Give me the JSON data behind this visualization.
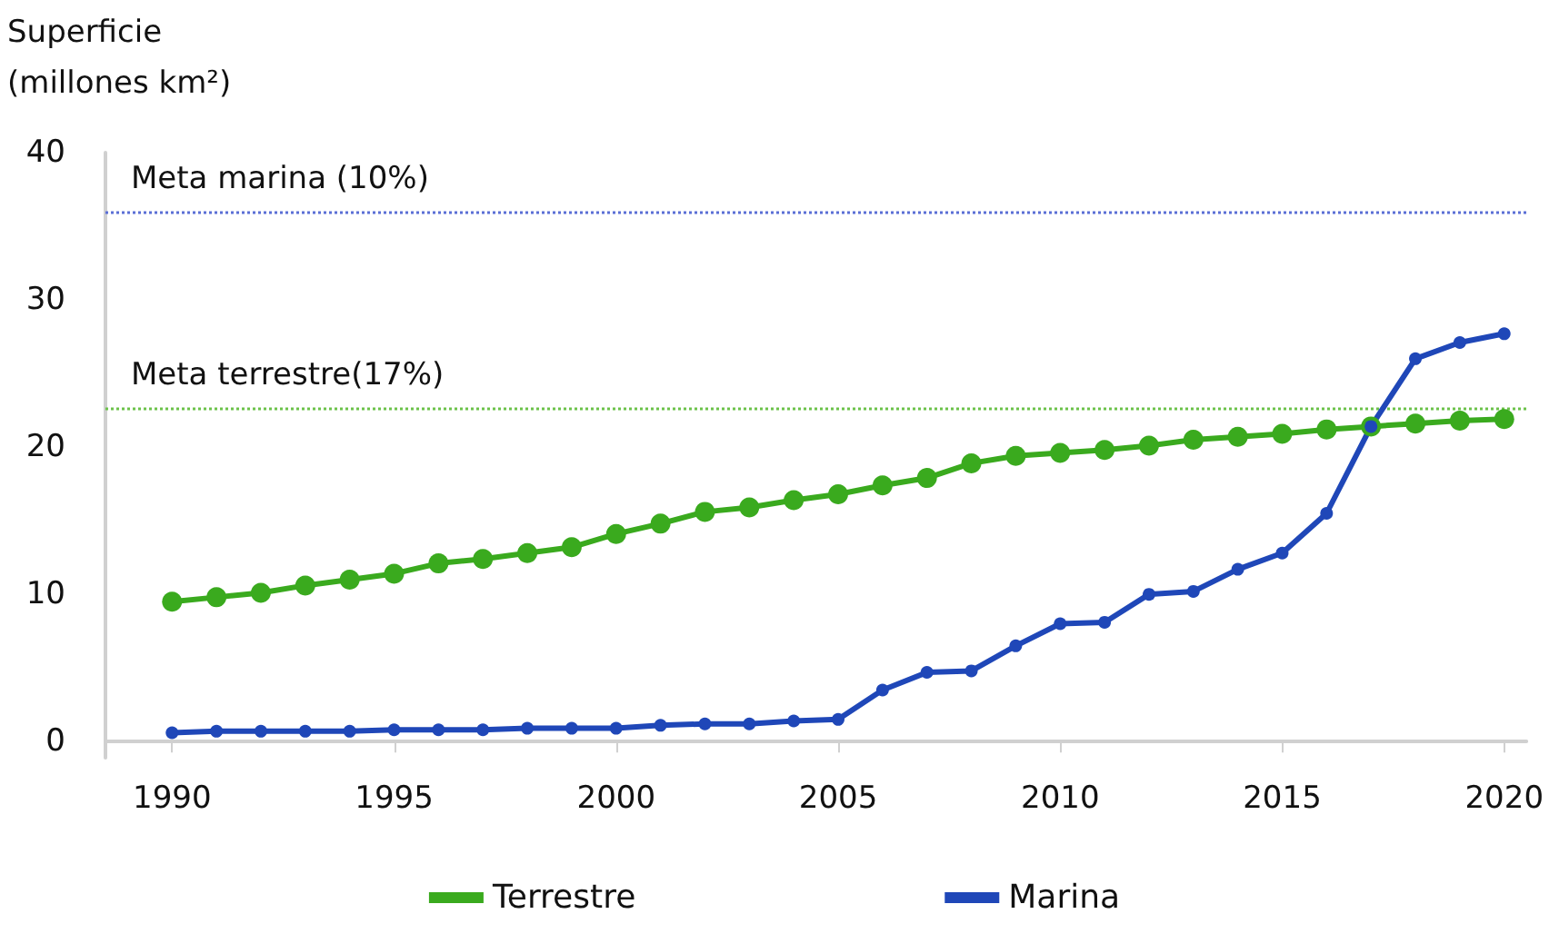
{
  "chart_data": {
    "type": "line",
    "ylabel": "Superficie\n(millones km²)",
    "x": [
      1990,
      1991,
      1992,
      1993,
      1994,
      1995,
      1996,
      1997,
      1998,
      1999,
      2000,
      2001,
      2002,
      2003,
      2004,
      2005,
      2006,
      2007,
      2008,
      2009,
      2010,
      2011,
      2012,
      2013,
      2014,
      2015,
      2016,
      2017,
      2018,
      2019,
      2020
    ],
    "series": [
      {
        "name": "Terrestre",
        "color": "#3aaa1e",
        "values": [
          9.5,
          9.8,
          10.1,
          10.6,
          11.0,
          11.4,
          12.1,
          12.4,
          12.8,
          13.2,
          14.1,
          14.8,
          15.6,
          15.9,
          16.4,
          16.8,
          17.4,
          17.9,
          18.9,
          19.4,
          19.6,
          19.8,
          20.1,
          20.5,
          20.7,
          20.9,
          21.2,
          21.4,
          21.6,
          21.8,
          21.9
        ]
      },
      {
        "name": "Marina",
        "color": "#1f47b8",
        "values": [
          0.6,
          0.7,
          0.7,
          0.7,
          0.7,
          0.8,
          0.8,
          0.8,
          0.9,
          0.9,
          0.9,
          1.1,
          1.2,
          1.2,
          1.4,
          1.5,
          3.5,
          4.7,
          4.8,
          6.5,
          8.0,
          8.1,
          10.0,
          10.2,
          11.7,
          12.8,
          15.5,
          21.4,
          26.0,
          27.1,
          27.7
        ]
      }
    ],
    "xlim": [
      1988.5,
      2020.5
    ],
    "xticks": [
      1990,
      1995,
      2000,
      2005,
      2010,
      2015,
      2020
    ],
    "ylim": [
      -1.1,
      40
    ],
    "yticks": [
      0,
      10,
      20,
      30,
      40
    ],
    "ref_lines": [
      {
        "axis": "y",
        "value": 35.9,
        "label": "Meta marina (10%)",
        "color": "#5b6fd6",
        "line_style": "dotted"
      },
      {
        "axis": "y",
        "value": 22.6,
        "label": "Meta terrestre(17%)",
        "color": "#6cc24a",
        "line_style": "dotted"
      }
    ],
    "grid": false,
    "legend": "bottom",
    "marker": "circle",
    "line_style": "solid"
  }
}
